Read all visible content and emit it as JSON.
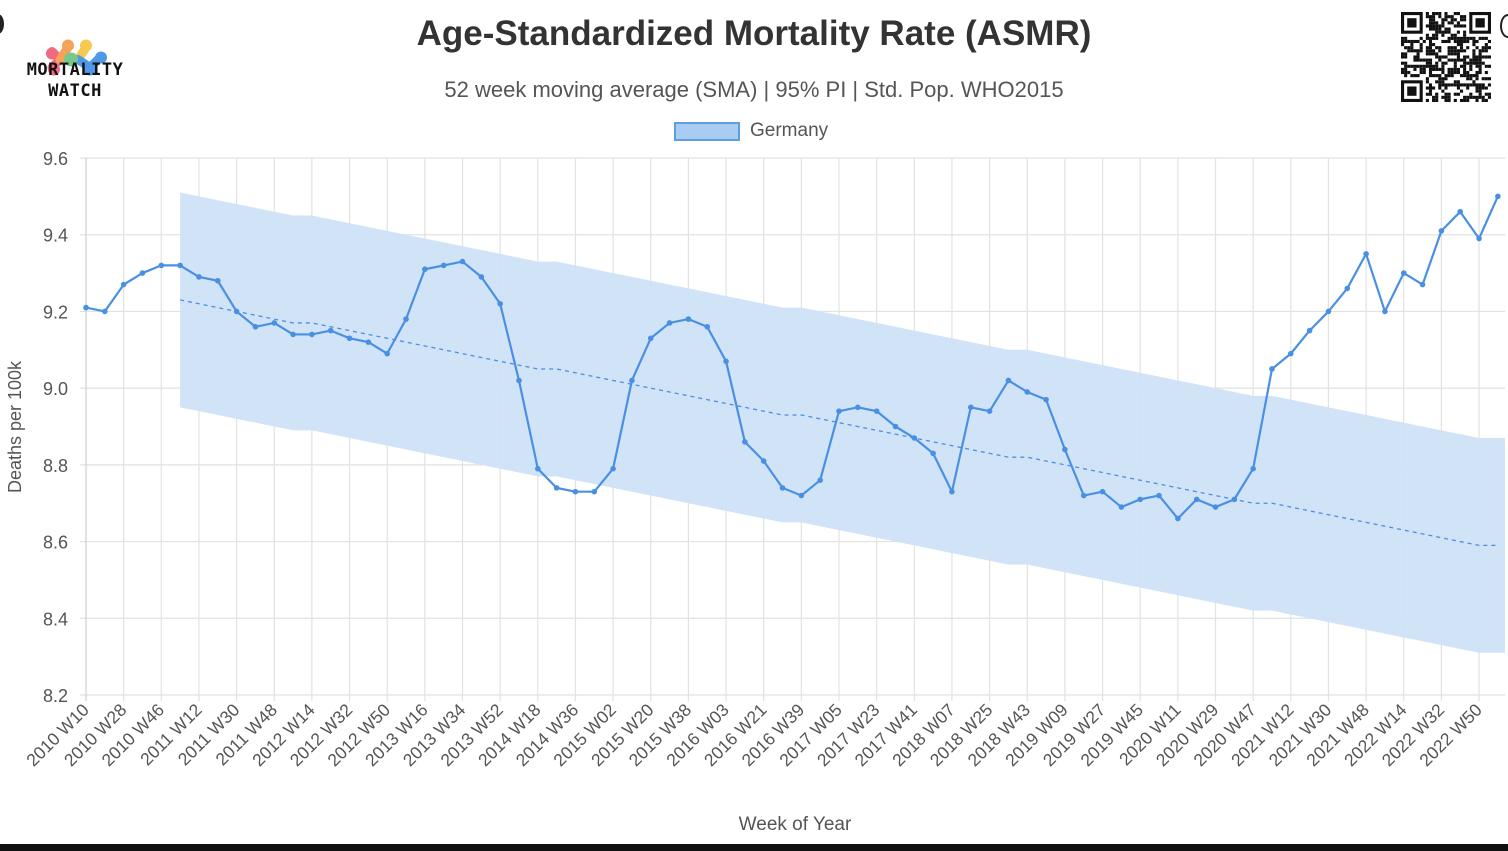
{
  "logo": {
    "text_line1": "MORTALITY",
    "text_line2": "WATCH",
    "colors": [
      "#f06b82",
      "#f5a35a",
      "#f7c94f",
      "#76c98a",
      "#4f9ae8"
    ]
  },
  "header": {
    "title": "Age-Standardized Mortality Rate (ASMR)",
    "subtitle": "52 week moving average (SMA) | 95% PI | Std. Pop. WHO2015"
  },
  "qr_code": {
    "icon": "qr-code-icon"
  },
  "chart_data": {
    "type": "line",
    "title": "Age-Standardized Mortality Rate (ASMR)",
    "subtitle": "52 week moving average (SMA) | 95% PI | Std. Pop. WHO2015",
    "xlabel": "Week of Year",
    "ylabel": "Deaths per 100k",
    "ylim": [
      8.2,
      9.6
    ],
    "yticks": [
      "9.6",
      "9.4",
      "9.2",
      "9.0",
      "8.8",
      "8.6",
      "8.4",
      "8.2"
    ],
    "grid": true,
    "legend": {
      "position": "top",
      "entries": [
        "Germany"
      ]
    },
    "colors": {
      "line": "#4a90e2",
      "band": "#cfe2f7",
      "baseline": "#4a90e2"
    },
    "x_tick_labels": [
      "2010 W10",
      "2010 W28",
      "2010 W46",
      "2011 W12",
      "2011 W30",
      "2011 W48",
      "2012 W14",
      "2012 W32",
      "2012 W50",
      "2013 W16",
      "2013 W34",
      "2013 W52",
      "2014 W18",
      "2014 W36",
      "2015 W02",
      "2015 W20",
      "2015 W38",
      "2016 W03",
      "2016 W21",
      "2016 W39",
      "2017 W05",
      "2017 W23",
      "2017 W41",
      "2018 W07",
      "2018 W25",
      "2018 W43",
      "2019 W09",
      "2019 W27",
      "2019 W45",
      "2020 W11",
      "2020 W29",
      "2020 W47",
      "2021 W12",
      "2021 W30",
      "2021 W48",
      "2022 W14",
      "2022 W32",
      "2022 W50"
    ],
    "x": [
      "2010 W10",
      "2010 W19",
      "2010 W28",
      "2010 W37",
      "2010 W46",
      "2011 W03",
      "2011 W12",
      "2011 W21",
      "2011 W30",
      "2011 W39",
      "2011 W48",
      "2012 W05",
      "2012 W14",
      "2012 W23",
      "2012 W32",
      "2012 W41",
      "2012 W50",
      "2013 W07",
      "2013 W16",
      "2013 W25",
      "2013 W34",
      "2013 W43",
      "2013 W52",
      "2014 W09",
      "2014 W18",
      "2014 W27",
      "2014 W36",
      "2014 W45",
      "2015 W02",
      "2015 W11",
      "2015 W20",
      "2015 W29",
      "2015 W38",
      "2015 W47",
      "2016 W03",
      "2016 W12",
      "2016 W21",
      "2016 W30",
      "2016 W39",
      "2016 W48",
      "2017 W05",
      "2017 W14",
      "2017 W23",
      "2017 W32",
      "2017 W41",
      "2017 W50",
      "2018 W07",
      "2018 W16",
      "2018 W25",
      "2018 W34",
      "2018 W43",
      "2018 W52",
      "2019 W09",
      "2019 W18",
      "2019 W27",
      "2019 W36",
      "2019 W45",
      "2020 W02",
      "2020 W11",
      "2020 W20",
      "2020 W29",
      "2020 W38",
      "2020 W47",
      "2021 W03",
      "2021 W12",
      "2021 W21",
      "2021 W30",
      "2021 W39",
      "2021 W48",
      "2022 W05",
      "2022 W14",
      "2022 W23",
      "2022 W32",
      "2022 W41",
      "2022 W50",
      "2023 W07"
    ],
    "series": [
      {
        "name": "Germany",
        "values": [
          9.21,
          9.2,
          9.27,
          9.3,
          9.32,
          9.32,
          9.29,
          9.28,
          9.2,
          9.16,
          9.17,
          9.14,
          9.14,
          9.15,
          9.13,
          9.12,
          9.09,
          9.18,
          9.31,
          9.32,
          9.33,
          9.29,
          9.22,
          9.02,
          8.79,
          8.74,
          8.73,
          8.73,
          8.79,
          9.02,
          9.13,
          9.17,
          9.18,
          9.16,
          9.07,
          8.86,
          8.81,
          8.74,
          8.72,
          8.76,
          8.94,
          8.95,
          8.94,
          8.9,
          8.87,
          8.83,
          8.73,
          8.95,
          8.94,
          9.02,
          8.99,
          8.97,
          8.84,
          8.72,
          8.73,
          8.69,
          8.71,
          8.72,
          8.66,
          8.71,
          8.69,
          8.71,
          8.79,
          9.05,
          9.09,
          9.15,
          9.2,
          9.26,
          9.35,
          9.2,
          9.3,
          9.27,
          9.41,
          9.46,
          9.39,
          9.5
        ]
      },
      {
        "role": "baseline",
        "values": [
          null,
          null,
          null,
          null,
          null,
          9.23,
          9.22,
          9.21,
          9.2,
          9.19,
          9.18,
          9.17,
          9.17,
          9.16,
          9.15,
          9.14,
          9.13,
          9.12,
          9.11,
          9.1,
          9.09,
          9.08,
          9.07,
          9.06,
          9.05,
          9.05,
          9.04,
          9.03,
          9.02,
          9.01,
          9.0,
          8.99,
          8.98,
          8.97,
          8.96,
          8.95,
          8.94,
          8.93,
          8.93,
          8.92,
          8.91,
          8.9,
          8.89,
          8.88,
          8.87,
          8.86,
          8.85,
          8.84,
          8.83,
          8.82,
          8.82,
          8.81,
          8.8,
          8.79,
          8.78,
          8.77,
          8.76,
          8.75,
          8.74,
          8.73,
          8.72,
          8.71,
          8.7,
          8.7,
          8.69,
          8.68,
          8.67,
          8.66,
          8.65,
          8.64,
          8.63,
          8.62,
          8.61,
          8.6,
          8.59,
          8.59
        ]
      },
      {
        "role": "pi_upper",
        "values": [
          null,
          null,
          null,
          null,
          null,
          9.51,
          9.5,
          9.49,
          9.48,
          9.47,
          9.46,
          9.45,
          9.45,
          9.44,
          9.43,
          9.42,
          9.41,
          9.4,
          9.39,
          9.38,
          9.37,
          9.36,
          9.35,
          9.34,
          9.33,
          9.33,
          9.32,
          9.31,
          9.3,
          9.29,
          9.28,
          9.27,
          9.26,
          9.25,
          9.24,
          9.23,
          9.22,
          9.21,
          9.21,
          9.2,
          9.19,
          9.18,
          9.17,
          9.16,
          9.15,
          9.14,
          9.13,
          9.12,
          9.11,
          9.1,
          9.1,
          9.09,
          9.08,
          9.07,
          9.06,
          9.05,
          9.04,
          9.03,
          9.02,
          9.01,
          9.0,
          8.99,
          8.98,
          8.98,
          8.97,
          8.96,
          8.95,
          8.94,
          8.93,
          8.92,
          8.91,
          8.9,
          8.89,
          8.88,
          8.87,
          8.87
        ]
      },
      {
        "role": "pi_lower",
        "values": [
          null,
          null,
          null,
          null,
          null,
          8.95,
          8.94,
          8.93,
          8.92,
          8.91,
          8.9,
          8.89,
          8.89,
          8.88,
          8.87,
          8.86,
          8.85,
          8.84,
          8.83,
          8.82,
          8.81,
          8.8,
          8.79,
          8.78,
          8.77,
          8.77,
          8.76,
          8.75,
          8.74,
          8.73,
          8.72,
          8.71,
          8.7,
          8.69,
          8.68,
          8.67,
          8.66,
          8.65,
          8.65,
          8.64,
          8.63,
          8.62,
          8.61,
          8.6,
          8.59,
          8.58,
          8.57,
          8.56,
          8.55,
          8.54,
          8.54,
          8.53,
          8.52,
          8.51,
          8.5,
          8.49,
          8.48,
          8.47,
          8.46,
          8.45,
          8.44,
          8.43,
          8.42,
          8.42,
          8.41,
          8.4,
          8.39,
          8.38,
          8.37,
          8.36,
          8.35,
          8.34,
          8.33,
          8.32,
          8.31,
          8.31
        ]
      }
    ]
  }
}
